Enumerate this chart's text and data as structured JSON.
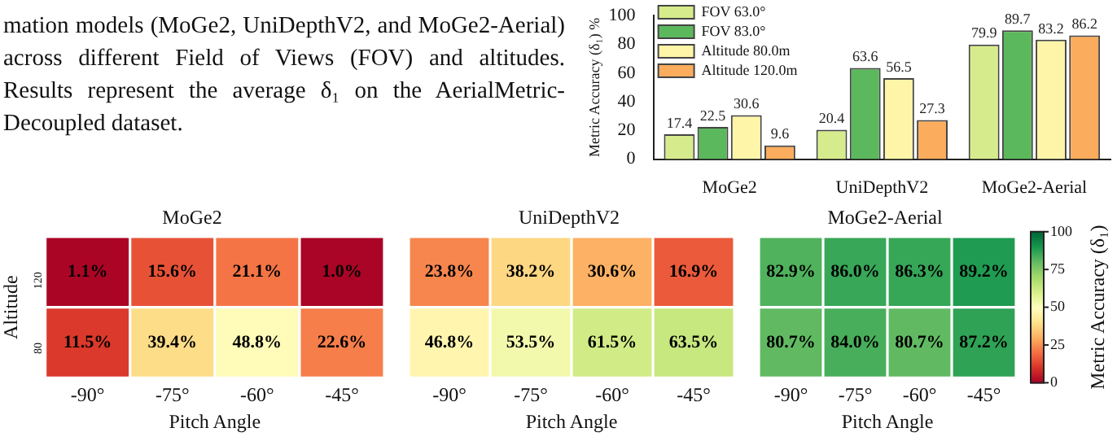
{
  "chart_data": [
    {
      "type": "bar",
      "ylabel": "Metric Accuracy (δ₁) %",
      "categories": [
        "MoGe2",
        "UniDepthV2",
        "MoGe2-Aerial"
      ],
      "series": [
        {
          "name": "FOV 63.0°",
          "color": "#d6ec8c",
          "values": [
            17.4,
            20.4,
            79.9
          ]
        },
        {
          "name": "FOV 83.0°",
          "color": "#5cb85c",
          "values": [
            22.5,
            63.6,
            89.7
          ]
        },
        {
          "name": "Altitude 80.0m",
          "color": "#fff5a8",
          "values": [
            30.6,
            56.5,
            83.2
          ]
        },
        {
          "name": "Altitude 120.0m",
          "color": "#fbac5c",
          "values": [
            9.6,
            27.3,
            86.2
          ]
        }
      ],
      "ylim": [
        0,
        100
      ],
      "yticks": [
        0,
        20,
        40,
        60,
        80,
        100
      ],
      "data_labels": true,
      "legend": "top left",
      "grid": false,
      "annotations": [
        "mation models (MoGe2, UniDepthV2, and MoGe2-Aerial) across different Field of Views (FOV) and altitudes. Results represent the average δ₁ on the AerialMetric-Decoupled dataset."
      ]
    },
    {
      "type": "heatmap",
      "title": "MoGe2",
      "xlabel": "Pitch Angle",
      "ylabel": "Altitude",
      "categories": [
        "-90°",
        "-75°",
        "-60°",
        "-45°"
      ],
      "y_categories": [
        "120",
        "80"
      ],
      "cells": [
        [
          1.1,
          15.6,
          21.1,
          1.0
        ],
        [
          11.5,
          39.4,
          48.8,
          22.6
        ]
      ],
      "cell_labels": [
        [
          "1.1%",
          "15.6%",
          "21.1%",
          "1.0%"
        ],
        [
          "11.5%",
          "39.4%",
          "48.8%",
          "22.6%"
        ]
      ]
    },
    {
      "type": "heatmap",
      "title": "UniDepthV2",
      "xlabel": "Pitch Angle",
      "categories": [
        "-90°",
        "-75°",
        "-60°",
        "-45°"
      ],
      "y_categories": [
        "120",
        "80"
      ],
      "cells": [
        [
          23.8,
          38.2,
          30.6,
          16.9
        ],
        [
          46.8,
          53.5,
          61.5,
          63.5
        ]
      ],
      "cell_labels": [
        [
          "23.8%",
          "38.2%",
          "30.6%",
          "16.9%"
        ],
        [
          "46.8%",
          "53.5%",
          "61.5%",
          "63.5%"
        ]
      ],
      "tick_labels": "x"
    },
    {
      "type": "heatmap",
      "title": "MoGe2-Aerial",
      "xlabel": "Pitch Angle",
      "categories": [
        "-90°",
        "-75°",
        "-60°",
        "-45°"
      ],
      "y_categories": [
        "120",
        "80"
      ],
      "cells": [
        [
          82.9,
          86.0,
          86.3,
          89.2
        ],
        [
          80.7,
          84.0,
          80.7,
          87.2
        ]
      ],
      "cell_labels": [
        [
          "82.9%",
          "86.0%",
          "86.3%",
          "89.2%"
        ],
        [
          "80.7%",
          "84.0%",
          "80.7%",
          "87.2%"
        ]
      ],
      "tick_labels": "x",
      "clim": [
        0,
        100
      ],
      "cticks": [
        0,
        25,
        50,
        75,
        100
      ],
      "clabel": "Metric Accuracy (δ₁)"
    }
  ]
}
